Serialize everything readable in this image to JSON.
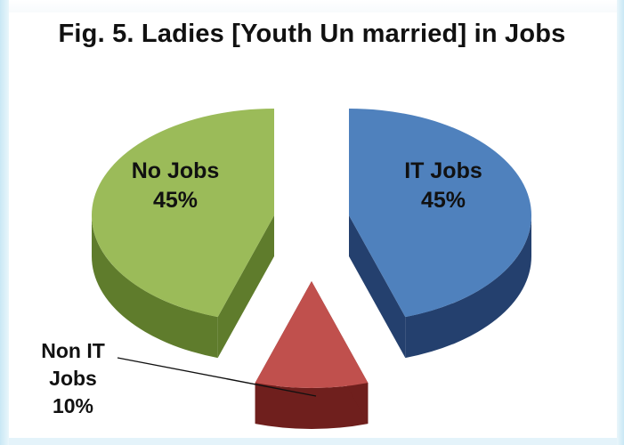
{
  "chart_data": {
    "type": "pie",
    "title": "Fig. 5. Ladies [Youth Un married] in Jobs",
    "slices": [
      {
        "label_lines": [
          "IT Jobs",
          "45%"
        ],
        "value": 45,
        "color": "#4f81bd",
        "side_color": "#24406e"
      },
      {
        "label_lines": [
          "Non IT",
          "Jobs",
          "10%"
        ],
        "value": 10,
        "color": "#c0504d",
        "side_color": "#6f1f1d"
      },
      {
        "label_lines": [
          "No Jobs",
          "45%"
        ],
        "value": 45,
        "color": "#9bbb59",
        "side_color": "#5f7c2c"
      }
    ],
    "style": "3d-exploded"
  }
}
